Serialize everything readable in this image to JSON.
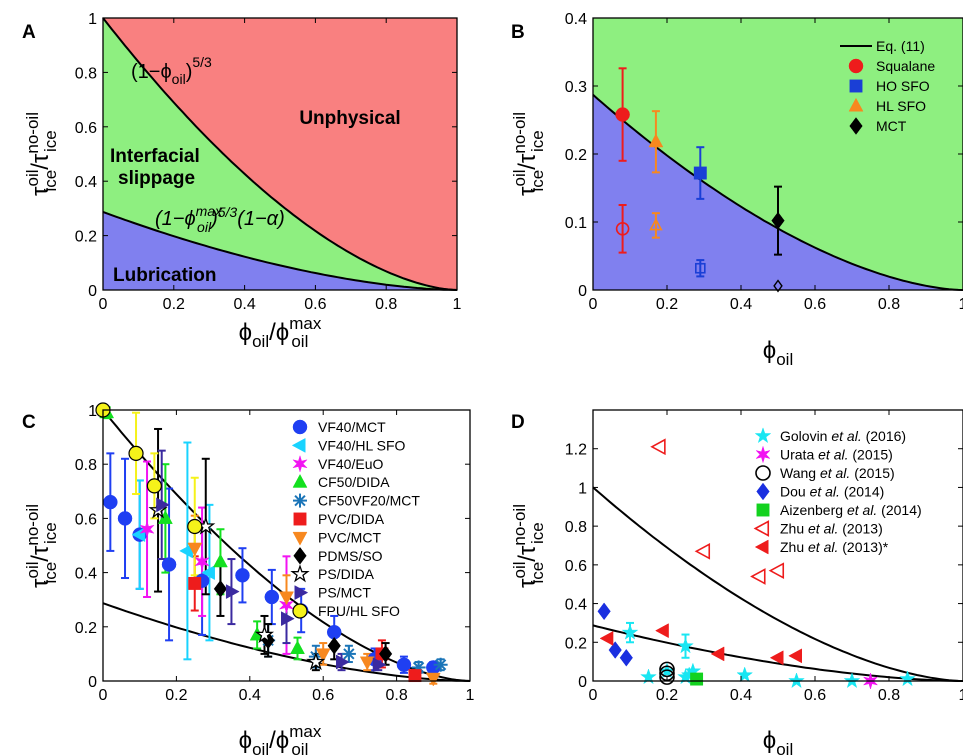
{
  "labels": {
    "tau_main": "τ",
    "tau_sup": "oil",
    "tau_sub": "ice",
    "slash": "/τ",
    "no_oil": "no-oil",
    "phi": "ϕ",
    "phi_sub": "oil",
    "phi_max": "max",
    "phi_slash": "/ϕ"
  },
  "chart_data": [
    {
      "panel": "A",
      "type": "area",
      "xlim": [
        0,
        1
      ],
      "ylim": [
        0,
        1
      ],
      "xticks": [
        "0",
        "0.2",
        "0.4",
        "0.6",
        "0.8",
        "1"
      ],
      "yticks": [
        "0",
        "0.2",
        "0.4",
        "0.6",
        "0.8",
        "1"
      ],
      "alpha": 0.713,
      "regions": [
        {
          "name": "Unphysical",
          "color": "#f98080"
        },
        {
          "name": "Interfacial slippage",
          "line2": "slippage",
          "line1": "Interfacial",
          "color": "#8eef80"
        },
        {
          "name": "Lubrication",
          "color": "#8080ef"
        }
      ],
      "upper_curve_label": {
        "pre": "(1−ϕ",
        "sub": "oil",
        "post": ")",
        "sup": "5/3"
      },
      "lower_curve_label": {
        "pre": "(1−ϕ",
        "sub": "oil",
        "sup": "max",
        "post": ")",
        "exp": "5/3",
        "tail": "(1−α)"
      }
    },
    {
      "panel": "B",
      "type": "scatter",
      "xlim": [
        0,
        1
      ],
      "ylim": [
        0,
        0.4
      ],
      "xticks": [
        "0",
        "0.2",
        "0.4",
        "0.6",
        "0.8",
        "1"
      ],
      "yticks": [
        "0",
        "0.1",
        "0.2",
        "0.3",
        "0.4"
      ],
      "bg_upper": "#8eef80",
      "bg_lower": "#8080ef",
      "curve": {
        "name": "Eq. (11)",
        "y0": 0.287
      },
      "series": [
        {
          "name": "Squalane",
          "marker": "circle",
          "color": "#ee1c1c",
          "filled": {
            "x": 0.08,
            "y": 0.258,
            "err": 0.068
          },
          "open": {
            "x": 0.08,
            "y": 0.09,
            "err": 0.035
          }
        },
        {
          "name": "HO SFO",
          "marker": "square",
          "color": "#1a3fd6",
          "filled": {
            "x": 0.29,
            "y": 0.172,
            "err": 0.038
          },
          "open": {
            "x": 0.29,
            "y": 0.032,
            "err": 0.012
          }
        },
        {
          "name": "HL SFO",
          "marker": "triangle",
          "color": "#f7881f",
          "filled": {
            "x": 0.17,
            "y": 0.218,
            "err": 0.045
          },
          "open": {
            "x": 0.17,
            "y": 0.095,
            "err": 0.018
          }
        },
        {
          "name": "MCT",
          "marker": "diamond",
          "color": "#000000",
          "filled": {
            "x": 0.5,
            "y": 0.102,
            "err": 0.05
          },
          "open": {
            "x": 0.5,
            "y": 0.006,
            "err": 0
          }
        }
      ]
    },
    {
      "panel": "C",
      "type": "scatter",
      "xlim": [
        0,
        1
      ],
      "ylim": [
        0,
        1
      ],
      "xticks": [
        "0",
        "0.2",
        "0.4",
        "0.6",
        "0.8",
        "1"
      ],
      "yticks": [
        "0",
        "0.2",
        "0.4",
        "0.6",
        "0.8",
        "1"
      ],
      "curves": [
        {
          "y0": 1.0,
          "type": "upper"
        },
        {
          "y0": 0.287,
          "type": "lower"
        }
      ],
      "series": [
        {
          "name": "VF40/MCT",
          "marker": "circle",
          "color": "#1f3ff2",
          "points": [
            [
              0.02,
              0.66,
              0.18
            ],
            [
              0.06,
              0.6,
              0.22
            ],
            [
              0.1,
              0.54,
              0.2
            ],
            [
              0.18,
              0.43,
              0.28
            ],
            [
              0.27,
              0.37,
              0.2
            ],
            [
              0.38,
              0.39,
              0.1
            ],
            [
              0.46,
              0.31,
              0.1
            ],
            [
              0.54,
              0.26,
              0.08
            ],
            [
              0.63,
              0.18,
              0.06
            ],
            [
              0.74,
              0.08,
              0.04
            ],
            [
              0.82,
              0.06,
              0.03
            ],
            [
              0.9,
              0.05,
              0.02
            ]
          ]
        },
        {
          "name": "VF40/HL SFO",
          "marker": "triangle-left",
          "color": "#19d3ff",
          "points": [
            [
              0.1,
              0.54,
              0.2
            ],
            [
              0.23,
              0.48,
              0.4
            ],
            [
              0.29,
              0.4,
              0.25
            ]
          ]
        },
        {
          "name": "VF40/EuO",
          "marker": "star6",
          "color": "#f213f2",
          "points": [
            [
              0.12,
              0.56,
              0.25
            ],
            [
              0.27,
              0.44,
              0.2
            ],
            [
              0.5,
              0.28,
              0.18
            ]
          ]
        },
        {
          "name": "CF50/DIDA",
          "marker": "triangle",
          "color": "#13e01f",
          "points": [
            [
              0.01,
              0.99,
              0.02
            ],
            [
              0.17,
              0.6,
              0.2
            ],
            [
              0.32,
              0.44,
              0.12
            ],
            [
              0.42,
              0.17,
              0.05
            ],
            [
              0.53,
              0.12,
              0.04
            ]
          ]
        },
        {
          "name": "CF50VF20/MCT",
          "marker": "asterisk",
          "color": "#1b75b8",
          "points": [
            [
              0.45,
              0.15,
              0.06
            ],
            [
              0.58,
              0.09,
              0.04
            ],
            [
              0.67,
              0.1,
              0.03
            ],
            [
              0.86,
              0.05,
              0.02
            ],
            [
              0.92,
              0.06,
              0.02
            ]
          ]
        },
        {
          "name": "PVC/DIDA",
          "marker": "square",
          "color": "#ee1c1c",
          "points": [
            [
              0.25,
              0.36,
              0.1
            ],
            [
              0.76,
              0.1,
              0.05
            ],
            [
              0.85,
              0.02,
              0.02
            ]
          ]
        },
        {
          "name": "PVC/MCT",
          "marker": "triangle-down",
          "color": "#f7881f",
          "points": [
            [
              0.25,
              0.49,
              0.12
            ],
            [
              0.5,
              0.31,
              0.08
            ],
            [
              0.6,
              0.1,
              0.04
            ],
            [
              0.72,
              0.07,
              0.03
            ],
            [
              0.9,
              0.01,
              0.02
            ]
          ]
        },
        {
          "name": "PDMS/SO",
          "marker": "diamond",
          "color": "#000000",
          "points": [
            [
              0.32,
              0.34,
              0.1
            ],
            [
              0.45,
              0.15,
              0.06
            ],
            [
              0.63,
              0.13,
              0.05
            ],
            [
              0.77,
              0.1,
              0.04
            ]
          ]
        },
        {
          "name": "PS/DIDA",
          "marker": "star5",
          "color": "#000000",
          "points": [
            [
              0.15,
              0.63,
              0.3
            ],
            [
              0.28,
              0.57,
              0.25
            ],
            [
              0.44,
              0.17,
              0.07
            ],
            [
              0.58,
              0.07,
              0.03
            ]
          ]
        },
        {
          "name": "PS/MCT",
          "marker": "triangle-right",
          "color": "#3b2aa0",
          "points": [
            [
              0.16,
              0.65,
              0.2
            ],
            [
              0.35,
              0.33,
              0.12
            ],
            [
              0.5,
              0.23,
              0.09
            ],
            [
              0.65,
              0.07,
              0.03
            ],
            [
              0.75,
              0.06,
              0.02
            ]
          ]
        },
        {
          "name": "FPU/HL SFO",
          "marker": "circle",
          "color": "#f5f21a",
          "points": [
            [
              0.0,
              1.0,
              0
            ],
            [
              0.09,
              0.84,
              0.15
            ],
            [
              0.14,
              0.72,
              0.12
            ],
            [
              0.25,
              0.57,
              0.18
            ]
          ]
        }
      ]
    },
    {
      "panel": "D",
      "type": "scatter",
      "xlim": [
        0,
        1
      ],
      "ylim": [
        0,
        1.4
      ],
      "xticks": [
        "0",
        "0.2",
        "0.4",
        "0.6",
        "0.8",
        "1"
      ],
      "yticks": [
        "0",
        "0.2",
        "0.4",
        "0.6",
        "0.8",
        "1",
        "1.2"
      ],
      "curves": [
        {
          "y0": 1.0,
          "type": "upper"
        },
        {
          "y0": 0.287,
          "type": "lower"
        }
      ],
      "series": [
        {
          "name": "Golovin et al. (2016)",
          "author": "Golovin",
          "tail": "(2016)",
          "marker": "star5",
          "color": "#19e6f2",
          "points": [
            [
              0.1,
              0.25,
              0.05
            ],
            [
              0.15,
              0.02,
              0
            ],
            [
              0.2,
              0.05,
              0
            ],
            [
              0.25,
              0.18,
              0.06
            ],
            [
              0.25,
              0.02,
              0
            ],
            [
              0.26,
              0.03,
              0
            ],
            [
              0.27,
              0.05,
              0
            ],
            [
              0.41,
              0.03,
              0
            ],
            [
              0.55,
              0.0,
              0
            ],
            [
              0.7,
              0.0,
              0
            ],
            [
              0.85,
              0.01,
              0
            ]
          ]
        },
        {
          "name": "Urata et al. (2015)",
          "author": "Urata",
          "tail": "(2015)",
          "marker": "star6",
          "color": "#f213f2",
          "points": [
            [
              0.75,
              0.0,
              0
            ]
          ]
        },
        {
          "name": "Wang et al. (2015)",
          "author": "Wang",
          "tail": "(2015)",
          "marker": "circle-open",
          "color": "#000000",
          "points": [
            [
              0.2,
              0.02,
              0
            ],
            [
              0.2,
              0.04,
              0
            ],
            [
              0.2,
              0.06,
              0
            ]
          ]
        },
        {
          "name": "Dou et al. (2014)",
          "author": "Dou",
          "tail": "(2014)",
          "marker": "diamond",
          "color": "#1a2fe0",
          "points": [
            [
              0.03,
              0.36,
              0
            ],
            [
              0.06,
              0.16,
              0
            ],
            [
              0.09,
              0.12,
              0
            ]
          ]
        },
        {
          "name": "Aizenberg et al. (2014)",
          "author": "Aizenberg",
          "tail": "(2014)",
          "marker": "square",
          "color": "#13d21f",
          "points": [
            [
              0.28,
              0.01,
              0
            ]
          ]
        },
        {
          "name": "Zhu et al. (2013)",
          "author": "Zhu",
          "tail": "(2013)",
          "marker": "triangle-left-open",
          "color": "#ee1c1c",
          "points": [
            [
              0.18,
              1.21,
              0
            ],
            [
              0.3,
              0.67,
              0
            ],
            [
              0.45,
              0.54,
              0
            ],
            [
              0.5,
              0.57,
              0
            ]
          ]
        },
        {
          "name": "Zhu et al. (2013)*",
          "author": "Zhu",
          "tail": "(2013)*",
          "marker": "triangle-left",
          "color": "#ee1c1c",
          "points": [
            [
              0.04,
              0.22,
              0
            ],
            [
              0.19,
              0.26,
              0
            ],
            [
              0.34,
              0.14,
              0
            ],
            [
              0.5,
              0.12,
              0
            ],
            [
              0.55,
              0.13,
              0
            ]
          ]
        }
      ]
    }
  ]
}
